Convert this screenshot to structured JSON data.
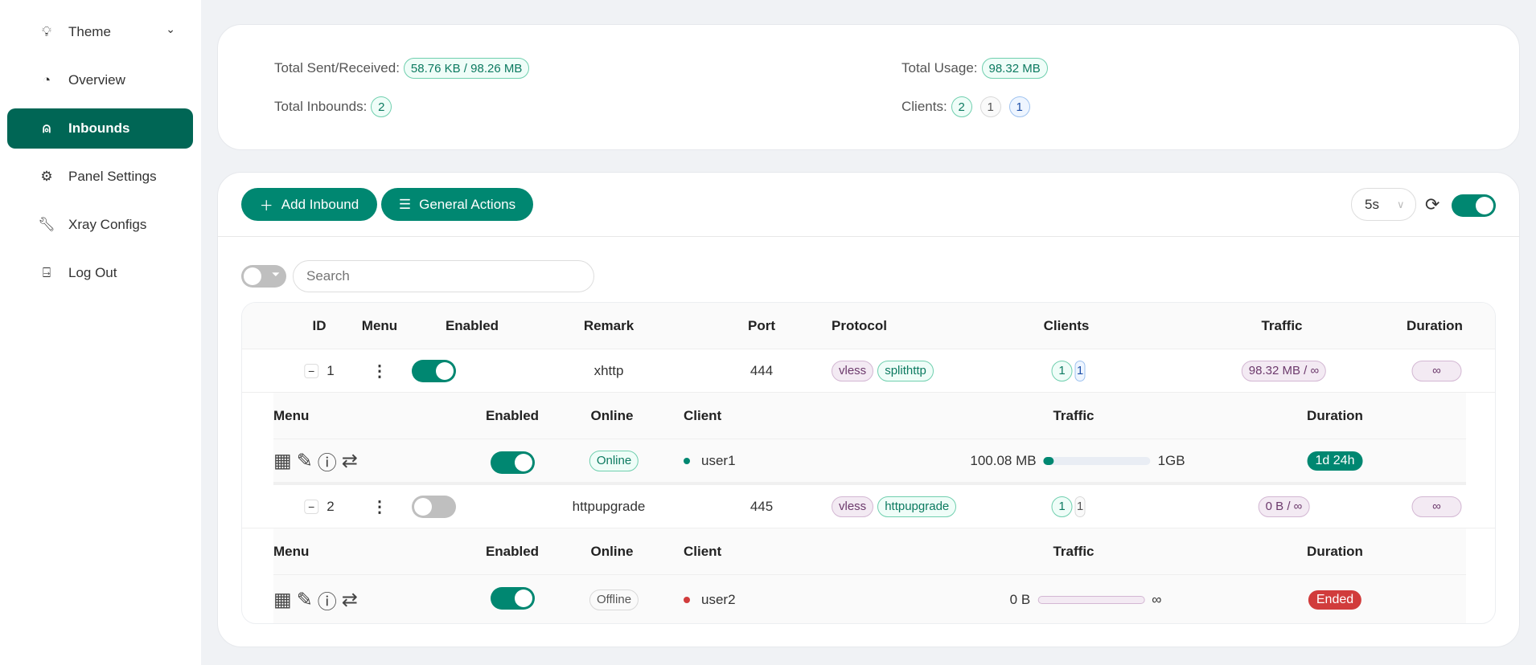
{
  "sidebar": {
    "items": [
      {
        "label": "Theme",
        "icon": "lightbulb-icon"
      },
      {
        "label": "Overview",
        "icon": "dashboard-icon"
      },
      {
        "label": "Inbounds",
        "icon": "user-icon",
        "active": true
      },
      {
        "label": "Panel Settings",
        "icon": "gear-icon"
      },
      {
        "label": "Xray Configs",
        "icon": "wrench-icon"
      },
      {
        "label": "Log Out",
        "icon": "logout-icon"
      }
    ]
  },
  "stats": {
    "sent_label": "Total Sent/Received:",
    "sent_value": "58.76 KB / 98.26 MB",
    "inbounds_label": "Total Inbounds:",
    "inbounds_value": "2",
    "usage_label": "Total Usage:",
    "usage_value": "98.32 MB",
    "clients_label": "Clients:",
    "clients_values": [
      "2",
      "1",
      "1"
    ]
  },
  "toolbar": {
    "add": "Add Inbound",
    "general": "General Actions",
    "interval": "5s",
    "auto_refresh": true
  },
  "search": {
    "placeholder": "Search",
    "value": ""
  },
  "table": {
    "headers": [
      "ID",
      "Menu",
      "Enabled",
      "Remark",
      "Port",
      "Protocol",
      "Clients",
      "Traffic",
      "Duration"
    ],
    "sub_headers": [
      "Menu",
      "Enabled",
      "Online",
      "Client",
      "Traffic",
      "Duration"
    ],
    "rows": [
      {
        "id": "1",
        "enabled": true,
        "remark": "xhttp",
        "port": "444",
        "protocol": "vless",
        "transport": "splithttp",
        "clients": [
          "1",
          "1"
        ],
        "traffic": "98.32 MB / ∞",
        "duration": "∞",
        "client": {
          "enabled": true,
          "online": "Online",
          "name": "user1",
          "used": "100.08 MB",
          "limit": "1GB",
          "percent": 9.8,
          "duration": "1d 24h",
          "status_color": "#008771"
        }
      },
      {
        "id": "2",
        "enabled": false,
        "remark": "httpupgrade",
        "port": "445",
        "protocol": "vless",
        "transport": "httpupgrade",
        "clients": [
          "1",
          "1"
        ],
        "traffic": "0 B / ∞",
        "duration": "∞",
        "client": {
          "enabled": true,
          "online": "Offline",
          "name": "user2",
          "used": "0 B",
          "limit": "∞",
          "percent": 0,
          "duration": "Ended",
          "status_color": "#d13c3c"
        }
      }
    ]
  },
  "colors": {
    "accent": "#008771",
    "sidebar_active": "#006655",
    "ended": "#d13c3c"
  }
}
